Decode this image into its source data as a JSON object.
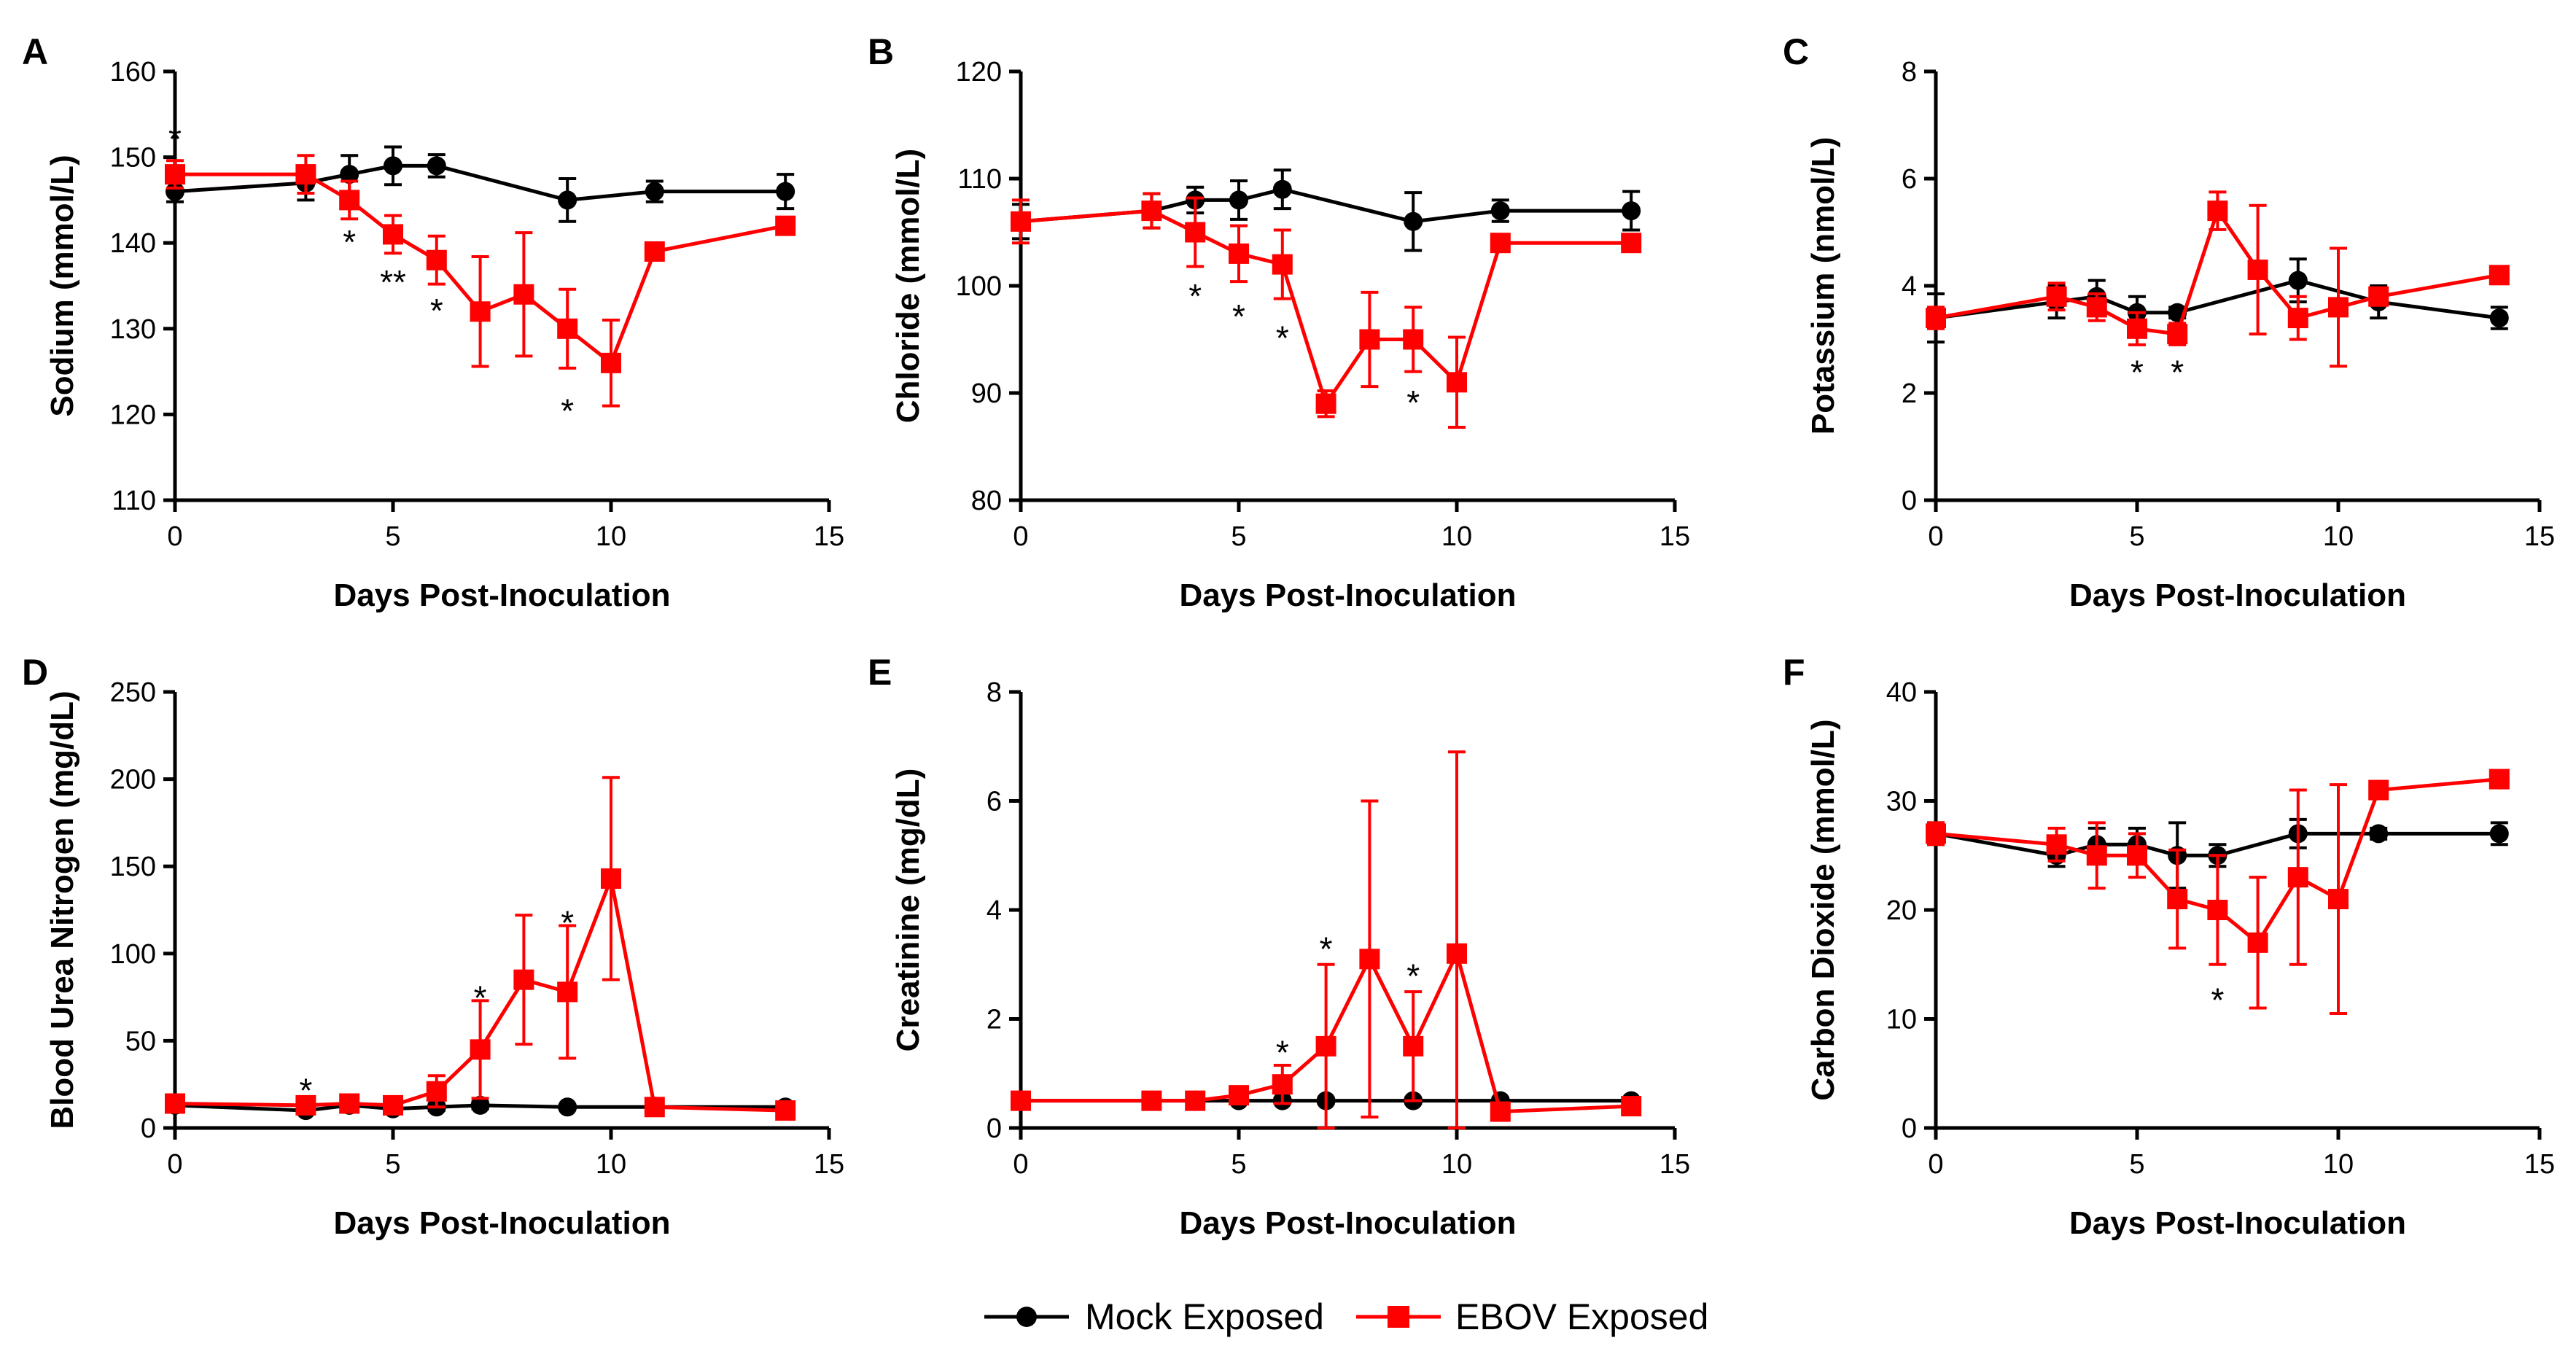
{
  "legend": {
    "series": [
      {
        "name": "Mock Exposed",
        "color": "#000000",
        "marker": "circle"
      },
      {
        "name": "EBOV Exposed",
        "color": "#ff0000",
        "marker": "square"
      }
    ]
  },
  "chart_data": [
    {
      "panel": "A",
      "type": "line",
      "xlabel": "Days Post-Inoculation",
      "ylabel": "Sodium  (mmol/L)",
      "xlim": [
        0,
        15
      ],
      "ylim": [
        110,
        160
      ],
      "xticks": [
        0,
        5,
        10,
        15
      ],
      "yticks": [
        110,
        120,
        130,
        140,
        150,
        160
      ],
      "series": [
        {
          "name": "Mock Exposed",
          "points": [
            {
              "x": 0,
              "y": 146,
              "err": 1.2
            },
            {
              "x": 3,
              "y": 147,
              "err": 2
            },
            {
              "x": 4,
              "y": 148,
              "err": 2.2
            },
            {
              "x": 5,
              "y": 149,
              "err": 2.2
            },
            {
              "x": 6,
              "y": 149,
              "err": 1.3
            },
            {
              "x": 9,
              "y": 145,
              "err": 2.5
            },
            {
              "x": 11,
              "y": 146,
              "err": 1.2
            },
            {
              "x": 14,
              "y": 146,
              "err": 2
            }
          ]
        },
        {
          "name": "EBOV Exposed",
          "points": [
            {
              "x": 0,
              "y": 148,
              "err": 1.6
            },
            {
              "x": 3,
              "y": 148,
              "err": 2.2
            },
            {
              "x": 4,
              "y": 145,
              "err": 2.2
            },
            {
              "x": 5,
              "y": 141,
              "err": 2.2
            },
            {
              "x": 6,
              "y": 138,
              "err": 2.8
            },
            {
              "x": 7,
              "y": 132,
              "err": 6.4
            },
            {
              "x": 8,
              "y": 134,
              "err": 7.2
            },
            {
              "x": 9,
              "y": 130,
              "err": 4.6
            },
            {
              "x": 10,
              "y": 126,
              "err": 5
            },
            {
              "x": 11,
              "y": 139,
              "err": 0.6
            },
            {
              "x": 14,
              "y": 142,
              "err": 0.6
            }
          ]
        }
      ],
      "annotations": [
        {
          "x": 0,
          "y": 152.2,
          "text": "*"
        },
        {
          "x": 4,
          "y": 140.2,
          "text": "*"
        },
        {
          "x": 5,
          "y": 135.5,
          "text": "**"
        },
        {
          "x": 6,
          "y": 132.2,
          "text": "*"
        },
        {
          "x": 9,
          "y": 120.5,
          "text": "*"
        }
      ]
    },
    {
      "panel": "B",
      "type": "line",
      "xlabel": "Days Post-Inoculation",
      "ylabel": "Chloride  (mmol/L)",
      "xlim": [
        0,
        15
      ],
      "ylim": [
        80,
        120
      ],
      "xticks": [
        0,
        5,
        10,
        15
      ],
      "yticks": [
        80,
        90,
        100,
        110,
        120
      ],
      "series": [
        {
          "name": "Mock Exposed",
          "points": [
            {
              "x": 0,
              "y": 106,
              "err": 1.6
            },
            {
              "x": 3,
              "y": 107,
              "err": 1.6
            },
            {
              "x": 4,
              "y": 108,
              "err": 1.2
            },
            {
              "x": 5,
              "y": 108,
              "err": 1.8
            },
            {
              "x": 6,
              "y": 109,
              "err": 1.8
            },
            {
              "x": 9,
              "y": 106,
              "err": 2.7
            },
            {
              "x": 11,
              "y": 107,
              "err": 1
            },
            {
              "x": 14,
              "y": 107,
              "err": 1.8
            }
          ]
        },
        {
          "name": "EBOV Exposed",
          "points": [
            {
              "x": 0,
              "y": 106,
              "err": 2
            },
            {
              "x": 3,
              "y": 107,
              "err": 1.6
            },
            {
              "x": 4,
              "y": 105,
              "err": 3.2
            },
            {
              "x": 5,
              "y": 103,
              "err": 2.6
            },
            {
              "x": 6,
              "y": 102,
              "err": 3.2
            },
            {
              "x": 7,
              "y": 89,
              "err": 1.2
            },
            {
              "x": 8,
              "y": 95,
              "err": 4.4
            },
            {
              "x": 9,
              "y": 95,
              "err": 3
            },
            {
              "x": 10,
              "y": 91,
              "err": 4.2
            },
            {
              "x": 11,
              "y": 104,
              "err": 0.6
            },
            {
              "x": 14,
              "y": 104,
              "err": 0.6
            }
          ]
        }
      ],
      "annotations": [
        {
          "x": 4,
          "y": 99.1,
          "text": "*"
        },
        {
          "x": 5,
          "y": 97.2,
          "text": "*"
        },
        {
          "x": 6,
          "y": 95.2,
          "text": "*"
        },
        {
          "x": 9,
          "y": 89.2,
          "text": "*"
        }
      ]
    },
    {
      "panel": "C",
      "type": "line",
      "xlabel": "Days Post-Inoculation",
      "ylabel": "Potassium  (nmol/L)",
      "xlim": [
        0,
        15
      ],
      "ylim": [
        0,
        8
      ],
      "xticks": [
        0,
        5,
        10,
        15
      ],
      "yticks": [
        0,
        2,
        4,
        6,
        8
      ],
      "series": [
        {
          "name": "Mock Exposed",
          "points": [
            {
              "x": 0,
              "y": 3.4,
              "err": 0.45
            },
            {
              "x": 3,
              "y": 3.7,
              "err": 0.3
            },
            {
              "x": 4,
              "y": 3.8,
              "err": 0.3
            },
            {
              "x": 5,
              "y": 3.5,
              "err": 0.3
            },
            {
              "x": 6,
              "y": 3.5,
              "err": 0.1
            },
            {
              "x": 9,
              "y": 4.1,
              "err": 0.4
            },
            {
              "x": 11,
              "y": 3.7,
              "err": 0.3
            },
            {
              "x": 14,
              "y": 3.4,
              "err": 0.2
            }
          ]
        },
        {
          "name": "EBOV Exposed",
          "points": [
            {
              "x": 0,
              "y": 3.4,
              "err": 0.2
            },
            {
              "x": 3,
              "y": 3.8,
              "err": 0.25
            },
            {
              "x": 4,
              "y": 3.6,
              "err": 0.25
            },
            {
              "x": 5,
              "y": 3.2,
              "err": 0.3
            },
            {
              "x": 6,
              "y": 3.1,
              "err": 0.2
            },
            {
              "x": 7,
              "y": 5.4,
              "err": 0.35
            },
            {
              "x": 8,
              "y": 4.3,
              "err": 1.2
            },
            {
              "x": 9,
              "y": 3.4,
              "err": 0.4
            },
            {
              "x": 10,
              "y": 3.6,
              "err": 1.1
            },
            {
              "x": 11,
              "y": 3.8,
              "err": 0.1
            },
            {
              "x": 14,
              "y": 4.2,
              "err": 0.1
            }
          ]
        }
      ],
      "annotations": [
        {
          "x": 5,
          "y": 2.4,
          "text": "*"
        },
        {
          "x": 6,
          "y": 2.4,
          "text": "*"
        }
      ]
    },
    {
      "panel": "D",
      "type": "line",
      "xlabel": "Days Post-Inoculation",
      "ylabel": "Blood  Urea Nitrogen  (mg/dL)",
      "xlim": [
        0,
        15
      ],
      "ylim": [
        0,
        250
      ],
      "xticks": [
        0,
        5,
        10,
        15
      ],
      "yticks": [
        0,
        50,
        100,
        150,
        200,
        250
      ],
      "series": [
        {
          "name": "Mock Exposed",
          "points": [
            {
              "x": 0,
              "y": 13,
              "err": 2
            },
            {
              "x": 3,
              "y": 10,
              "err": 2
            },
            {
              "x": 4,
              "y": 13,
              "err": 2
            },
            {
              "x": 5,
              "y": 11,
              "err": 2
            },
            {
              "x": 6,
              "y": 12,
              "err": 2
            },
            {
              "x": 7,
              "y": 13,
              "err": 2
            },
            {
              "x": 9,
              "y": 12,
              "err": 1
            },
            {
              "x": 11,
              "y": 12,
              "err": 1
            },
            {
              "x": 14,
              "y": 12,
              "err": 1
            }
          ]
        },
        {
          "name": "EBOV Exposed",
          "points": [
            {
              "x": 0,
              "y": 14,
              "err": 2
            },
            {
              "x": 3,
              "y": 13,
              "err": 2
            },
            {
              "x": 4,
              "y": 14,
              "err": 2
            },
            {
              "x": 5,
              "y": 13,
              "err": 3
            },
            {
              "x": 6,
              "y": 21,
              "err": 9
            },
            {
              "x": 7,
              "y": 45,
              "err": 28
            },
            {
              "x": 8,
              "y": 85,
              "err": 37
            },
            {
              "x": 9,
              "y": 78,
              "err": 38
            },
            {
              "x": 10,
              "y": 143,
              "err": 58
            },
            {
              "x": 11,
              "y": 12,
              "err": 1
            },
            {
              "x": 14,
              "y": 10,
              "err": 1
            }
          ]
        }
      ],
      "annotations": [
        {
          "x": 3,
          "y": 22,
          "text": "*"
        },
        {
          "x": 7,
          "y": 75,
          "text": "*"
        },
        {
          "x": 9,
          "y": 118,
          "text": "*"
        }
      ]
    },
    {
      "panel": "E",
      "type": "line",
      "xlabel": "Days Post-Inoculation",
      "ylabel": "Creatinine (mg/dL)",
      "xlim": [
        0,
        15
      ],
      "ylim": [
        0,
        8
      ],
      "xticks": [
        0,
        5,
        10,
        15
      ],
      "yticks": [
        0,
        2,
        4,
        6,
        8
      ],
      "series": [
        {
          "name": "Mock Exposed",
          "points": [
            {
              "x": 0,
              "y": 0.5,
              "err": 0.05
            },
            {
              "x": 3,
              "y": 0.5,
              "err": 0.05
            },
            {
              "x": 4,
              "y": 0.5,
              "err": 0.05
            },
            {
              "x": 5,
              "y": 0.5,
              "err": 0.05
            },
            {
              "x": 6,
              "y": 0.5,
              "err": 0.05
            },
            {
              "x": 7,
              "y": 0.5,
              "err": 0.05
            },
            {
              "x": 9,
              "y": 0.5,
              "err": 0.05
            },
            {
              "x": 11,
              "y": 0.5,
              "err": 0.05
            },
            {
              "x": 14,
              "y": 0.5,
              "err": 0.05
            }
          ]
        },
        {
          "name": "EBOV Exposed",
          "points": [
            {
              "x": 0,
              "y": 0.5,
              "err": 0.05
            },
            {
              "x": 3,
              "y": 0.5,
              "err": 0.05
            },
            {
              "x": 4,
              "y": 0.5,
              "err": 0.05
            },
            {
              "x": 5,
              "y": 0.6,
              "err": 0.1
            },
            {
              "x": 6,
              "y": 0.8,
              "err": 0.35
            },
            {
              "x": 7,
              "y": 1.5,
              "err": 1.5
            },
            {
              "x": 8,
              "y": 3.1,
              "err": 2.9
            },
            {
              "x": 9,
              "y": 1.5,
              "err": 1
            },
            {
              "x": 10,
              "y": 3.2,
              "err": 3.7
            },
            {
              "x": 11,
              "y": 0.3,
              "err": 0.05
            },
            {
              "x": 14,
              "y": 0.4,
              "err": 0.05
            }
          ]
        }
      ],
      "annotations": [
        {
          "x": 6,
          "y": 1.4,
          "text": "*"
        },
        {
          "x": 7,
          "y": 3.3,
          "text": "*"
        },
        {
          "x": 9,
          "y": 2.8,
          "text": "*"
        }
      ]
    },
    {
      "panel": "F",
      "type": "line",
      "xlabel": "Days Post-Inoculation",
      "ylabel": "Carbon  Dioxide (mmol/L)",
      "xlim": [
        0,
        15
      ],
      "ylim": [
        0,
        40
      ],
      "xticks": [
        0,
        5,
        10,
        15
      ],
      "yticks": [
        0,
        10,
        20,
        30,
        40
      ],
      "series": [
        {
          "name": "Mock Exposed",
          "points": [
            {
              "x": 0,
              "y": 27,
              "err": 1
            },
            {
              "x": 3,
              "y": 25,
              "err": 1
            },
            {
              "x": 4,
              "y": 26,
              "err": 1.5
            },
            {
              "x": 5,
              "y": 26,
              "err": 1.5
            },
            {
              "x": 6,
              "y": 25,
              "err": 3
            },
            {
              "x": 7,
              "y": 25,
              "err": 1
            },
            {
              "x": 9,
              "y": 27,
              "err": 1.3
            },
            {
              "x": 11,
              "y": 27,
              "err": 0.5
            },
            {
              "x": 14,
              "y": 27,
              "err": 1
            }
          ]
        },
        {
          "name": "EBOV Exposed",
          "points": [
            {
              "x": 0,
              "y": 27,
              "err": 1
            },
            {
              "x": 3,
              "y": 26,
              "err": 1.5
            },
            {
              "x": 4,
              "y": 25,
              "err": 3
            },
            {
              "x": 5,
              "y": 25,
              "err": 2
            },
            {
              "x": 6,
              "y": 21,
              "err": 4.5
            },
            {
              "x": 7,
              "y": 20,
              "err": 5
            },
            {
              "x": 8,
              "y": 17,
              "err": 6
            },
            {
              "x": 9,
              "y": 23,
              "err": 8
            },
            {
              "x": 10,
              "y": 21,
              "err": 10.5
            },
            {
              "x": 11,
              "y": 31,
              "err": 0.5
            },
            {
              "x": 14,
              "y": 32,
              "err": 0.5
            }
          ]
        }
      ],
      "annotations": [
        {
          "x": 7,
          "y": 11.8,
          "text": "*"
        }
      ]
    }
  ]
}
